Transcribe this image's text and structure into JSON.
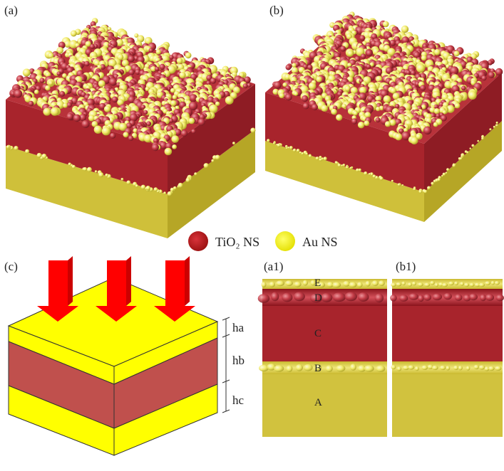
{
  "panels": {
    "a": {
      "label": "(a)"
    },
    "b": {
      "label": "(b)"
    },
    "c": {
      "label": "(c)"
    },
    "a1": {
      "label": "(a1)"
    },
    "b1": {
      "label": "(b1)"
    }
  },
  "legend": [
    {
      "label": "TiO₂ NS",
      "color": "#b01c1c"
    },
    {
      "label": "Au NS",
      "color": "#f4f20e"
    }
  ],
  "dimensions": [
    "ha",
    "hb",
    "hc"
  ],
  "cross_section_layers": [
    "E",
    "D",
    "C",
    "B",
    "A"
  ],
  "colors": {
    "tio2_layer": "#a8242c",
    "gold_layer": "#d4c43a",
    "model_red": "#c0504d",
    "model_yellow": "#ffff00",
    "arrow": "#ff0000",
    "sphere_red": "#c23a45",
    "sphere_yellow": "#f2ec6a"
  }
}
